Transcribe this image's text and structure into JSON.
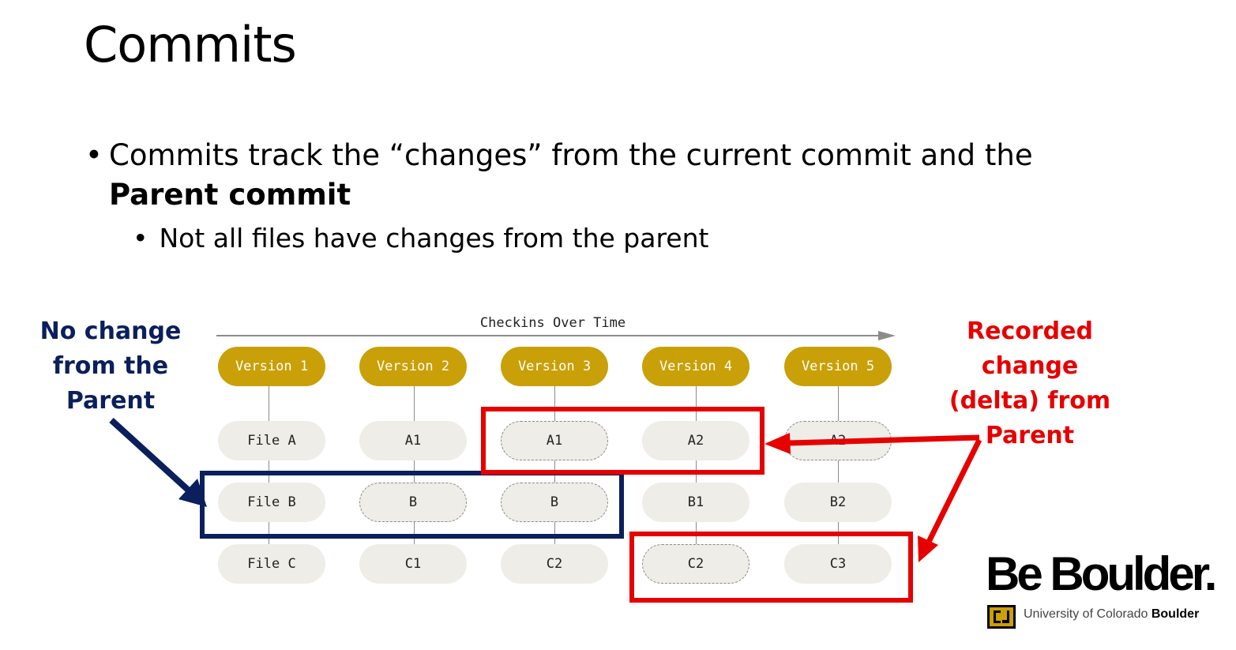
{
  "slide": {
    "title": "Commits",
    "bullet1_pre": "Commits track the “changes” from the current commit and the ",
    "bullet1_bold": "Parent commit",
    "bullet2": "Not all files have changes from the parent",
    "bullet_char": "•"
  },
  "diagram": {
    "timeline_label": "Checkins Over Time",
    "versions": [
      "Version 1",
      "Version 2",
      "Version 3",
      "Version 4",
      "Version 5"
    ],
    "rows": [
      [
        "File A",
        "A1",
        "A1",
        "A2",
        "A2"
      ],
      [
        "File B",
        "B",
        "B",
        "B1",
        "B2"
      ],
      [
        "File C",
        "C1",
        "C2",
        "C2",
        "C3"
      ]
    ],
    "colors": {
      "version_fill": "#c9a007",
      "file_fill": "#efede7",
      "navy": "#0a1f5c",
      "red": "#e60000"
    }
  },
  "annotations": {
    "left_line1": "No change",
    "left_line2": "from the",
    "left_line3": "Parent",
    "right_line1": "Recorded",
    "right_line2": "change",
    "right_line3": "(delta) from",
    "right_line4": "Parent"
  },
  "logo": {
    "main": "Be Boulder.",
    "sub_pre": "University of Colorado ",
    "sub_bold": "Boulder"
  }
}
